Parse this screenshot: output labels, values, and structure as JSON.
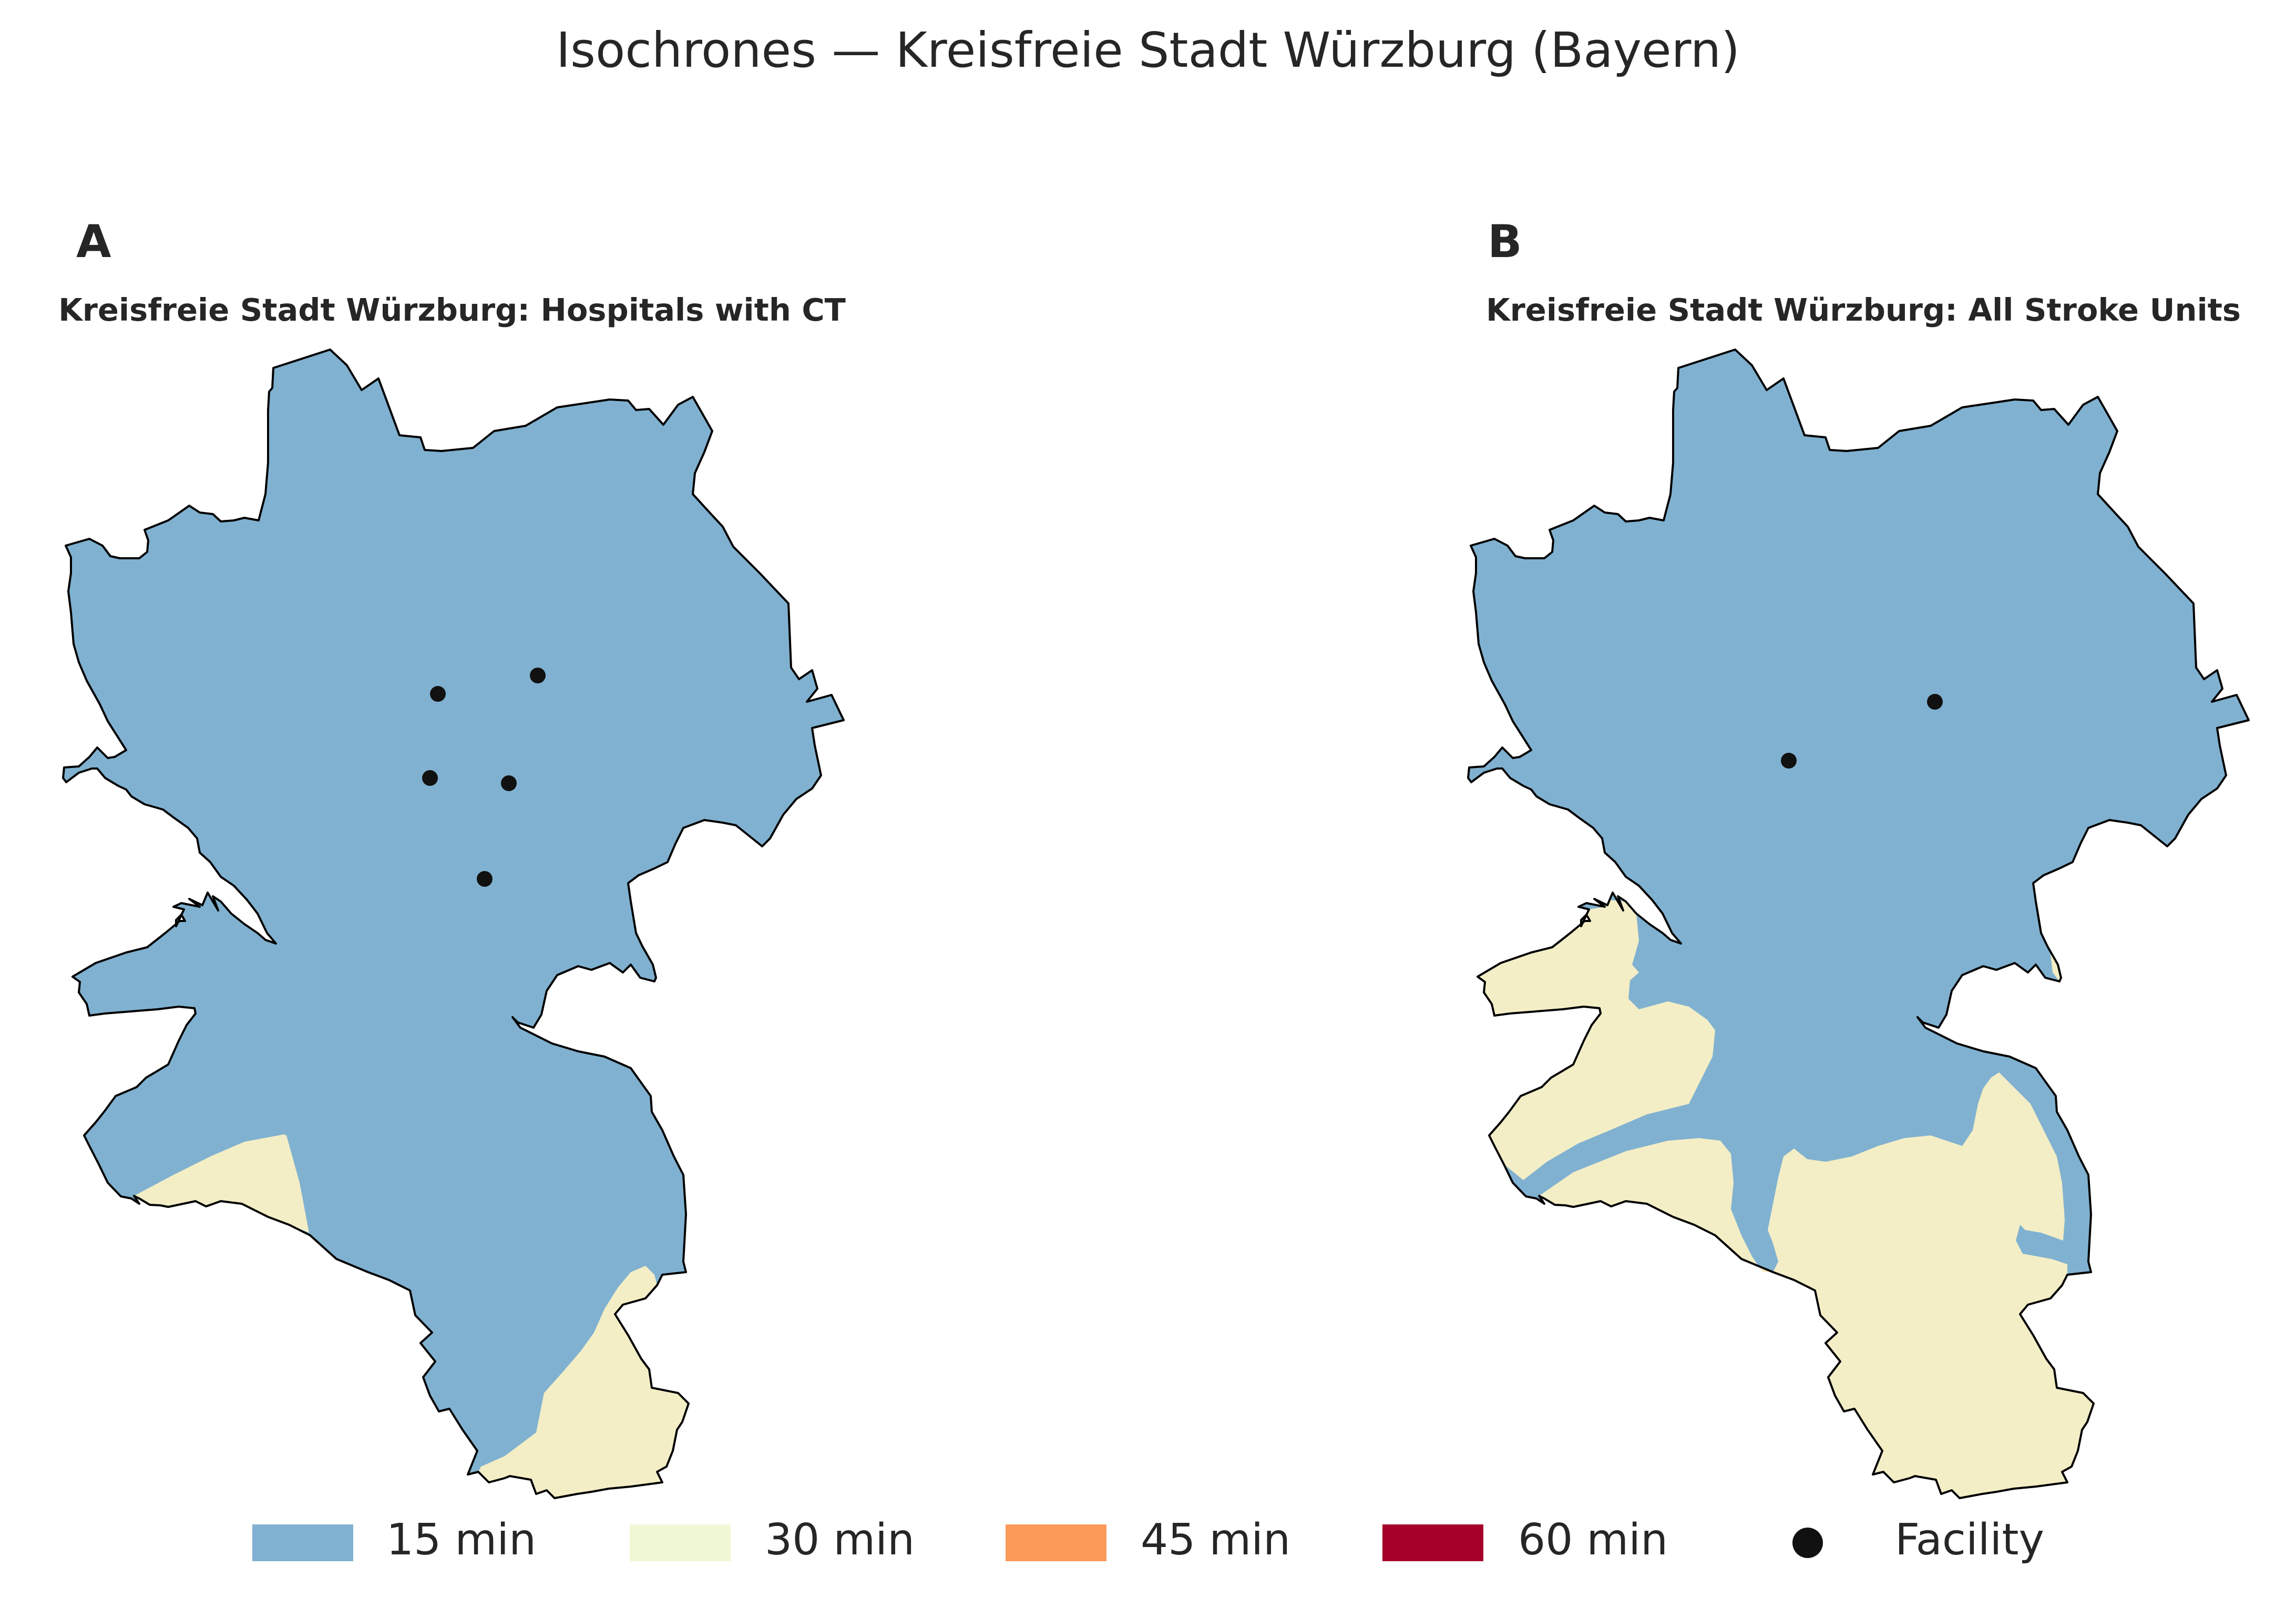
{
  "title": "Isochrones — Kreisfreie Stadt Würzburg (Bayern)",
  "colors": {
    "15": "#80b1d0",
    "30": "#f3eec6",
    "45": "#fc9a5a",
    "60": "#a6002a",
    "legend_30": "#f0f7d5",
    "outline": "#000000",
    "facility": "#111111"
  },
  "panels": [
    {
      "letter": "A",
      "title": "Kreisfreie Stadt Würzburg: Hospitals with CT",
      "facility_count": 5
    },
    {
      "letter": "B",
      "title": "Kreisfreie Stadt Würzburg: All Stroke Units",
      "facility_count": 2
    }
  ],
  "legend": [
    {
      "label": "15 min",
      "color_key": "15",
      "marker": "swatch"
    },
    {
      "label": "30 min",
      "color_key": "legend_30",
      "marker": "swatch"
    },
    {
      "label": "45 min",
      "color_key": "45",
      "marker": "swatch"
    },
    {
      "label": "60 min",
      "color_key": "60",
      "marker": "swatch"
    },
    {
      "label": "Facility",
      "marker": "dot"
    }
  ]
}
